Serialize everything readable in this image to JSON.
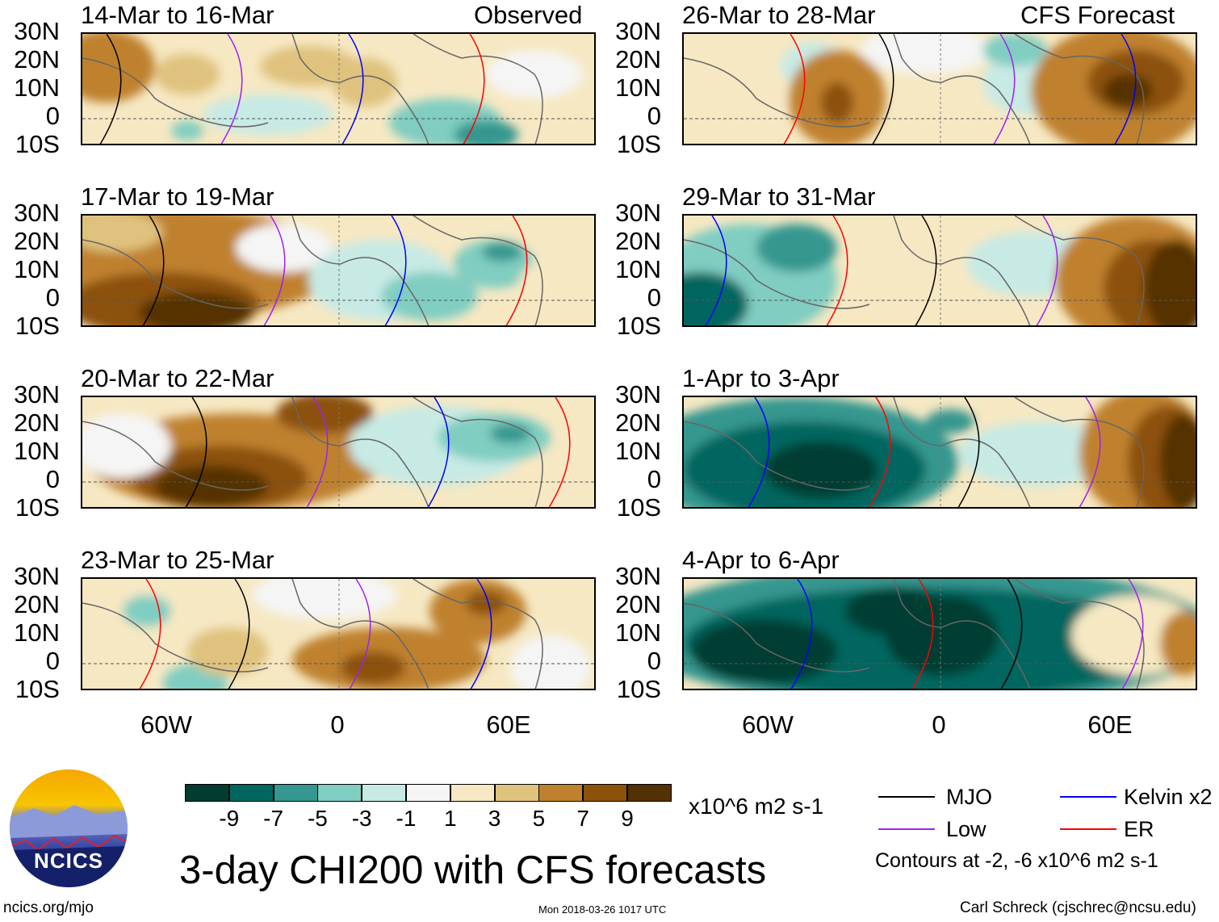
{
  "left_column_label": "Observed",
  "right_column_label": "CFS Forecast",
  "panels": [
    {
      "title": "14-Mar to 16-Mar",
      "column": "left"
    },
    {
      "title": "17-Mar to 19-Mar",
      "column": "left"
    },
    {
      "title": "20-Mar to 22-Mar",
      "column": "left"
    },
    {
      "title": "23-Mar to 25-Mar",
      "column": "left"
    },
    {
      "title": "26-Mar to 28-Mar",
      "column": "right"
    },
    {
      "title": "29-Mar to 31-Mar",
      "column": "right"
    },
    {
      "title": "1-Apr to 3-Apr",
      "column": "right"
    },
    {
      "title": "4-Apr to 6-Apr",
      "column": "right"
    }
  ],
  "lat_labels": [
    "30N",
    "20N",
    "10N",
    "0",
    "10S"
  ],
  "lon_labels": [
    "60W",
    "0",
    "60E"
  ],
  "colorbar": {
    "colors": [
      "#003c30",
      "#01665e",
      "#35978f",
      "#80cdc1",
      "#c7eae5",
      "#f5f5f5",
      "#f6e8c3",
      "#dfc27d",
      "#bf812d",
      "#8c510a",
      "#543005"
    ],
    "labels": [
      "-9",
      "-7",
      "-5",
      "-3",
      "-1",
      "1",
      "3",
      "5",
      "7",
      "9"
    ],
    "units": "x10^6 m2 s-1"
  },
  "legend": {
    "items": [
      {
        "label": "MJO",
        "color": "#000000"
      },
      {
        "label": "Low",
        "color": "#a020f0"
      },
      {
        "label": "Kelvin x2",
        "color": "#0000ff"
      },
      {
        "label": "ER",
        "color": "#ff0000"
      }
    ],
    "contours_note": "Contours at -2, -6 x10^6 m2 s-1"
  },
  "main_title": "3-day CHI200 with CFS forecasts",
  "logo_text": "NCICS",
  "url": "ncics.org/mjo",
  "timestamp": "Mon 2018-03-26 1017 UTC",
  "credit": "Carl Schreck (cjschrec@ncsu.edu)"
}
